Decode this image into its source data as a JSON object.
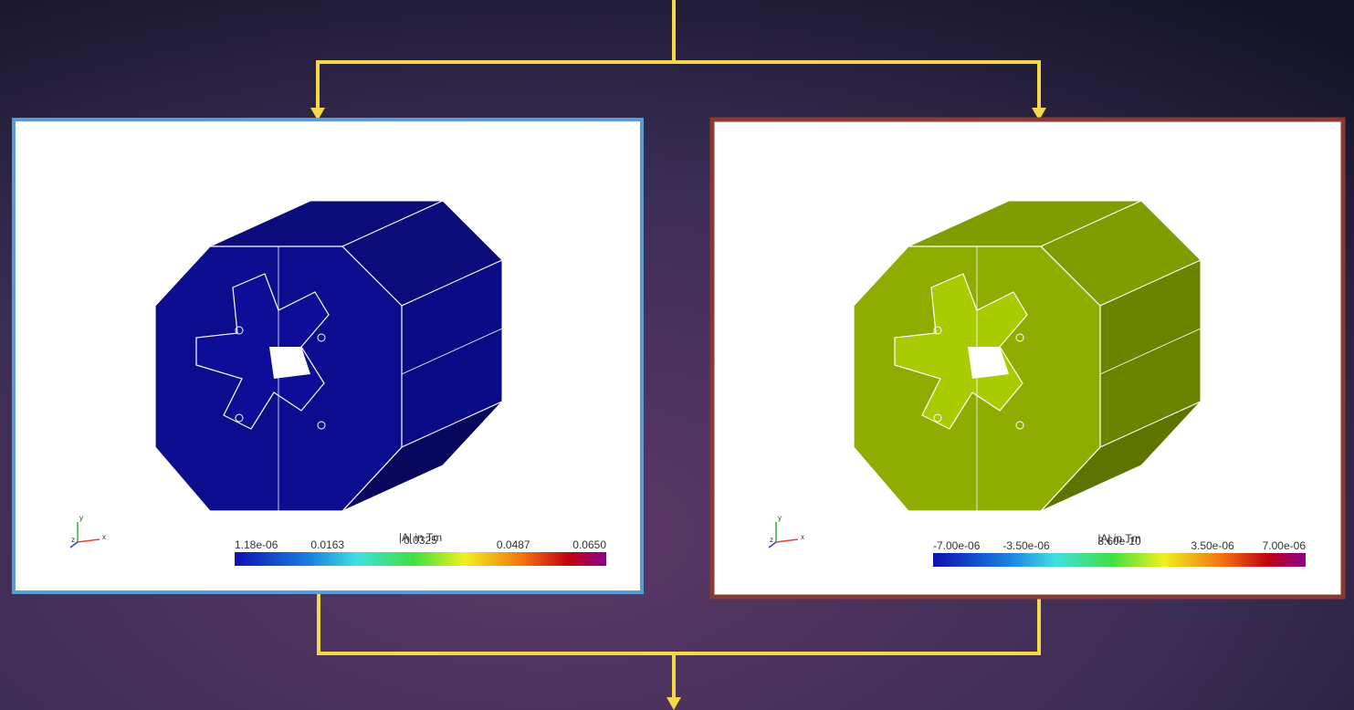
{
  "panels": [
    {
      "colorbar": {
        "title": "|A| in Tm",
        "ticks": [
          "1.18e-06",
          "0.0163",
          "0.0325",
          "0.0487",
          "0.0650"
        ]
      },
      "axes": {
        "x": "x",
        "y": "y",
        "z": "z"
      }
    },
    {
      "colorbar": {
        "title": "|A| in Tm",
        "ticks": [
          "-7.00e-06",
          "-3.50e-06",
          "8.60e-10",
          "3.50e-06",
          "7.00e-06"
        ]
      },
      "axes": {
        "x": "x",
        "y": "y",
        "z": "z"
      }
    }
  ]
}
